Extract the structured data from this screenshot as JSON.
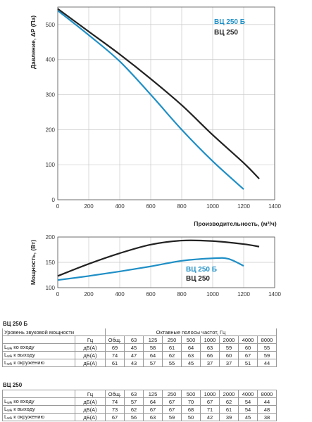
{
  "chart_data": [
    {
      "type": "line",
      "xlabel": "Производительность, (м³/ч)",
      "ylabel": "Давление, ΔP (Па)",
      "xlim": [
        0,
        1400
      ],
      "ylim": [
        0,
        550
      ],
      "xticks": [
        "0",
        "200",
        "400",
        "600",
        "800",
        "1000",
        "1200",
        "1400"
      ],
      "yticks": [
        "0",
        "100",
        "200",
        "300",
        "400",
        "500"
      ],
      "grid": true,
      "legend_position": "top-right",
      "series": [
        {
          "name": "ВЦ 250 Б",
          "color": "#1f8fc6",
          "x": [
            0,
            200,
            400,
            600,
            800,
            1000,
            1200
          ],
          "y": [
            540,
            470,
            395,
            300,
            200,
            110,
            30
          ]
        },
        {
          "name": "ВЦ 250",
          "color": "#222222",
          "x": [
            0,
            200,
            400,
            600,
            800,
            1000,
            1200,
            1300
          ],
          "y": [
            545,
            480,
            415,
            345,
            270,
            185,
            105,
            60
          ]
        }
      ]
    },
    {
      "type": "line",
      "ylabel": "Мощность, (Вт)",
      "xlim": [
        0,
        1400
      ],
      "ylim": [
        100,
        200
      ],
      "xticks": [
        "0",
        "200",
        "400",
        "600",
        "800",
        "1000",
        "1200",
        "1400"
      ],
      "yticks": [
        "100",
        "150",
        "200"
      ],
      "grid": true,
      "legend_position": "bottom-right",
      "series": [
        {
          "name": "ВЦ 250 Б",
          "color": "#1f8fc6",
          "x": [
            0,
            200,
            400,
            600,
            800,
            1000,
            1100,
            1200
          ],
          "y": [
            115,
            123,
            132,
            142,
            153,
            158,
            157,
            143
          ]
        },
        {
          "name": "ВЦ 250",
          "color": "#222222",
          "x": [
            0,
            200,
            400,
            600,
            800,
            1000,
            1200,
            1300
          ],
          "y": [
            123,
            147,
            168,
            185,
            193,
            192,
            186,
            181
          ]
        }
      ]
    }
  ],
  "tables": [
    {
      "title": "ВЦ 250 Б",
      "header_row1": {
        "label": "Уровень звуковой мощности",
        "bands_title": "Октавные полосы частот, Гц"
      },
      "header_row2": {
        "unit": "Гц",
        "cols": [
          "Общ.",
          "63",
          "125",
          "250",
          "500",
          "1000",
          "2000",
          "4000",
          "8000"
        ]
      },
      "rows": [
        {
          "l": "L",
          "sub": "wA",
          "text": " ко входу",
          "unit": "дБ(А)",
          "values": [
            "69",
            "45",
            "58",
            "61",
            "64",
            "63",
            "59",
            "60",
            "55"
          ]
        },
        {
          "l": "L",
          "sub": "wA",
          "text": " к выходу",
          "unit": "дБ(А)",
          "values": [
            "74",
            "47",
            "64",
            "62",
            "63",
            "66",
            "60",
            "67",
            "59"
          ]
        },
        {
          "l": "L",
          "sub": "wA",
          "text": " к окружению",
          "unit": "дБ(А)",
          "values": [
            "61",
            "43",
            "57",
            "55",
            "45",
            "37",
            "37",
            "51",
            "44"
          ]
        }
      ]
    },
    {
      "title": "ВЦ 250",
      "header_row2": {
        "unit": "Гц",
        "cols": [
          "Общ.",
          "63",
          "125",
          "250",
          "500",
          "1000",
          "2000",
          "4000",
          "8000"
        ]
      },
      "rows": [
        {
          "l": "L",
          "sub": "wA",
          "text": " ко входу",
          "unit": "дБ(А)",
          "values": [
            "74",
            "57",
            "64",
            "67",
            "70",
            "67",
            "62",
            "54",
            "44"
          ]
        },
        {
          "l": "L",
          "sub": "wA",
          "text": " к выходу",
          "unit": "дБ(А)",
          "values": [
            "73",
            "62",
            "67",
            "67",
            "68",
            "71",
            "61",
            "54",
            "48"
          ]
        },
        {
          "l": "L",
          "sub": "wA",
          "text": " к окружению",
          "unit": "дБ(А)",
          "values": [
            "67",
            "56",
            "63",
            "59",
            "50",
            "42",
            "39",
            "45",
            "38"
          ]
        }
      ]
    }
  ]
}
